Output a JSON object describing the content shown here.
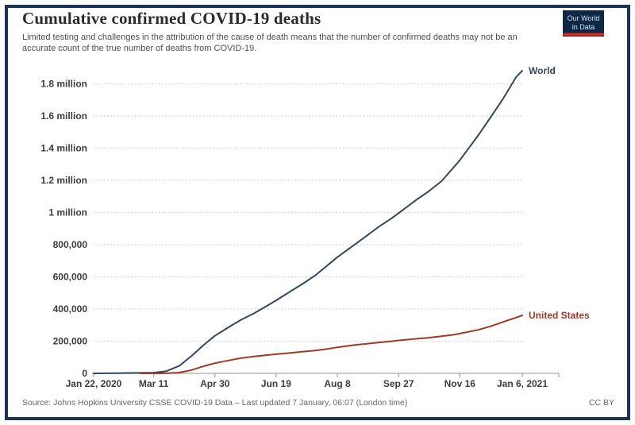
{
  "header": {
    "title": "Cumulative confirmed COVID-19 deaths",
    "subtitle": "Limited testing and challenges in the attribution of the cause of death means that the number of confirmed deaths may not be an accurate count of the true number of deaths from COVID-19.",
    "logo": {
      "line1": "Our World",
      "line2": "in Data"
    }
  },
  "footer": {
    "source": "Source: Johns Hopkins University CSSE COVID-19 Data – Last updated 7 January, 06:07 (London time)",
    "license": "CC BY"
  },
  "colors": {
    "frame": "#1e3256",
    "grid": "#cccccc",
    "axis": "#a9a9a9",
    "axis_label": "#3c3c3c",
    "world_line": "#35465c",
    "us_line": "#9e3a26",
    "logo_bg": "#0d2847",
    "logo_stripe": "#e23a2e"
  },
  "chart_data": {
    "type": "line",
    "title": "Cumulative confirmed COVID-19 deaths",
    "subtitle": "Limited testing and challenges in the attribution of the cause of death means that the number of confirmed deaths may not be an accurate count of the true number of deaths from COVID-19.",
    "grid": "dotted horizontal gridlines",
    "legend": "end-of-line labels",
    "x_axis": {
      "start_date": "2020-01-22",
      "end_date": "2021-01-06",
      "tick_labels": [
        "Jan 22, 2020",
        "Mar 11",
        "Apr 30",
        "Jun 19",
        "Aug 8",
        "Sep 27",
        "Nov 16",
        "Jan 6, 2021"
      ],
      "tick_days": [
        0,
        49,
        99,
        149,
        199,
        249,
        299,
        350
      ]
    },
    "y_axis": {
      "min": 0,
      "max": 1800000,
      "tick_values": [
        0,
        200000,
        400000,
        600000,
        800000,
        1000000,
        1200000,
        1400000,
        1600000,
        1800000
      ],
      "tick_labels": [
        "0",
        "200,000",
        "400,000",
        "600,000",
        "800,000",
        "1 million",
        "1.2 million",
        "1.4 million",
        "1.6 million",
        "1.8 million"
      ]
    },
    "series": [
      {
        "name": "World",
        "color": "#35465c",
        "points": [
          [
            "2020-01-22",
            17
          ],
          [
            "2020-02-01",
            259
          ],
          [
            "2020-02-11",
            1016
          ],
          [
            "2020-02-21",
            2247
          ],
          [
            "2020-03-01",
            3056
          ],
          [
            "2020-03-11",
            4615
          ],
          [
            "2020-03-21",
            13049
          ],
          [
            "2020-04-01",
            46809
          ],
          [
            "2020-04-11",
            108862
          ],
          [
            "2020-04-21",
            177641
          ],
          [
            "2020-04-30",
            233360
          ],
          [
            "2020-05-11",
            285972
          ],
          [
            "2020-05-21",
            331475
          ],
          [
            "2020-06-01",
            373342
          ],
          [
            "2020-06-11",
            417174
          ],
          [
            "2020-06-19",
            453834
          ],
          [
            "2020-07-01",
            511270
          ],
          [
            "2020-07-11",
            557877
          ],
          [
            "2020-07-21",
            609591
          ],
          [
            "2020-08-01",
            677790
          ],
          [
            "2020-08-08",
            722285
          ],
          [
            "2020-08-21",
            794279
          ],
          [
            "2020-09-01",
            855696
          ],
          [
            "2020-09-11",
            912691
          ],
          [
            "2020-09-21",
            961886
          ],
          [
            "2020-09-27",
            995994
          ],
          [
            "2020-10-11",
            1076055
          ],
          [
            "2020-10-21",
            1128325
          ],
          [
            "2020-11-01",
            1194646
          ],
          [
            "2020-11-11",
            1280868
          ],
          [
            "2020-11-16",
            1324852
          ],
          [
            "2020-12-01",
            1479382
          ],
          [
            "2020-12-11",
            1590603
          ],
          [
            "2020-12-21",
            1703372
          ],
          [
            "2021-01-01",
            1842557
          ],
          [
            "2021-01-06",
            1881703
          ]
        ]
      },
      {
        "name": "United States",
        "color": "#9e3a26",
        "points": [
          [
            "2020-02-29",
            1
          ],
          [
            "2020-03-11",
            38
          ],
          [
            "2020-03-21",
            301
          ],
          [
            "2020-04-01",
            5116
          ],
          [
            "2020-04-11",
            20608
          ],
          [
            "2020-04-21",
            45086
          ],
          [
            "2020-04-30",
            63006
          ],
          [
            "2020-05-11",
            80087
          ],
          [
            "2020-05-21",
            94352
          ],
          [
            "2020-06-01",
            105147
          ],
          [
            "2020-06-11",
            113055
          ],
          [
            "2020-06-19",
            119112
          ],
          [
            "2020-07-01",
            127322
          ],
          [
            "2020-07-11",
            135205
          ],
          [
            "2020-07-21",
            142073
          ],
          [
            "2020-08-01",
            153314
          ],
          [
            "2020-08-08",
            161842
          ],
          [
            "2020-08-21",
            175416
          ],
          [
            "2020-09-01",
            183969
          ],
          [
            "2020-09-11",
            192026
          ],
          [
            "2020-09-21",
            199549
          ],
          [
            "2020-09-27",
            204756
          ],
          [
            "2020-10-11",
            214879
          ],
          [
            "2020-10-21",
            221083
          ],
          [
            "2020-11-01",
            230996
          ],
          [
            "2020-11-11",
            240044
          ],
          [
            "2020-11-16",
            247246
          ],
          [
            "2020-12-01",
            270644
          ],
          [
            "2020-12-11",
            292311
          ],
          [
            "2020-12-21",
            318964
          ],
          [
            "2021-01-01",
            346589
          ],
          [
            "2021-01-06",
            361123
          ]
        ]
      }
    ]
  }
}
